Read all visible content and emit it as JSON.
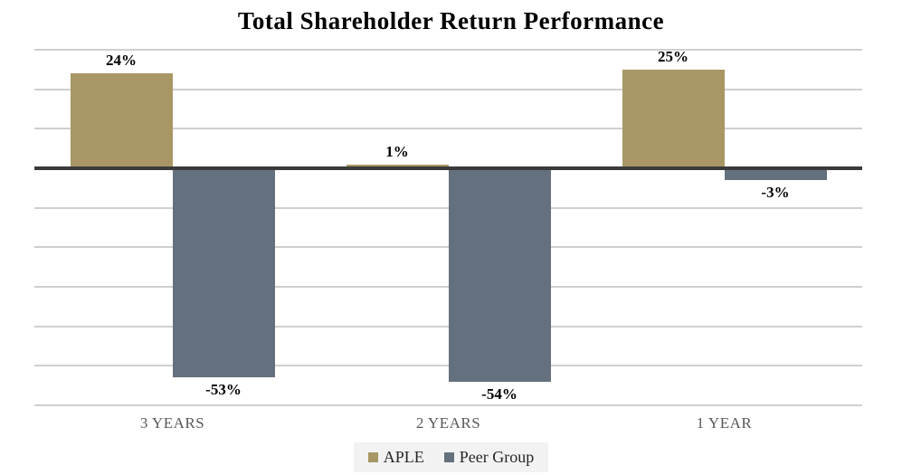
{
  "chart_data": {
    "type": "bar",
    "title": "Total Shareholder Return Performance",
    "categories": [
      "3 YEARS",
      "2 YEARS",
      "1 YEAR"
    ],
    "series": [
      {
        "name": "APLE",
        "color": "#A89764",
        "values": [
          24,
          1,
          25
        ],
        "labels": [
          "24%",
          "1%",
          "25%"
        ]
      },
      {
        "name": "Peer Group",
        "color": "#65707E",
        "values": [
          -53,
          -54,
          -3
        ],
        "labels": [
          "-53%",
          "-54%",
          "-3%"
        ]
      }
    ],
    "ylim": [
      -60,
      30
    ],
    "grid_step": 10,
    "grid": true,
    "legend_position": "bottom",
    "axis_line_color": "#3A3A3A",
    "gridline_color": "#CFCFCF",
    "value_label_color": "#000000",
    "category_label_color": "#595959",
    "legend_background": "#F2F2F2"
  }
}
